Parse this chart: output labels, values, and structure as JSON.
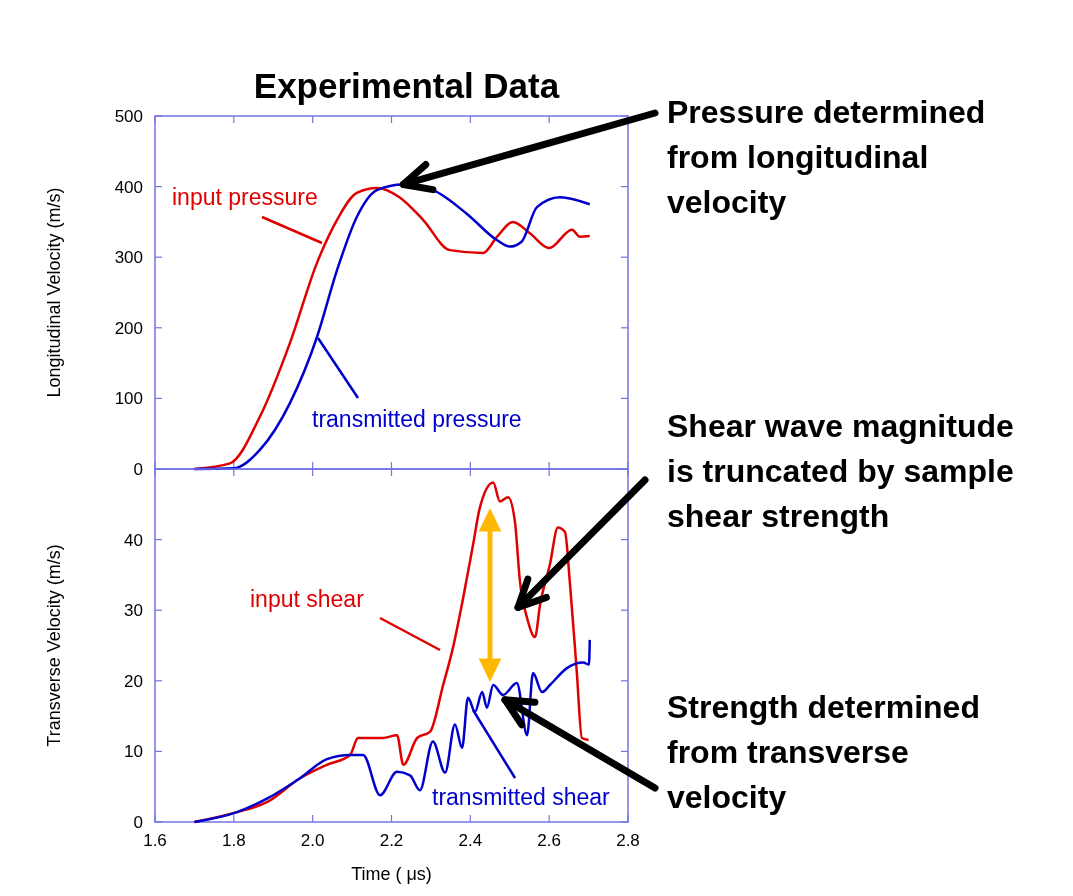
{
  "chart_data": [
    {
      "type": "line",
      "title": "Experimental Data",
      "ylabel": "Longitudinal Velocity (m/s)",
      "xlim": [
        1.6,
        2.8
      ],
      "xticks": [
        1.6,
        1.8,
        2.0,
        2.2,
        2.4,
        2.6,
        2.8
      ],
      "ylim": [
        0,
        500
      ],
      "yticks": [
        0,
        100,
        200,
        300,
        400,
        500
      ],
      "tick_labels": "y",
      "legend": false,
      "grid": false,
      "series": [
        {
          "name": "input pressure",
          "color": "#e00000",
          "x": [
            1.7,
            1.79,
            1.866,
            1.942,
            2.011,
            2.062,
            2.112,
            2.163,
            2.22,
            2.28,
            2.348,
            2.432,
            2.468,
            2.508,
            2.551,
            2.6,
            2.658,
            2.678,
            2.703
          ],
          "values": [
            0,
            8,
            74,
            178,
            292,
            353,
            391,
            398,
            385,
            353,
            310,
            306,
            329,
            350,
            334,
            313,
            339,
            329,
            330
          ]
        },
        {
          "name": "transmitted pressure",
          "color": "#0000cc",
          "x": [
            1.7,
            1.8,
            1.866,
            1.942,
            2.011,
            2.062,
            2.112,
            2.163,
            2.229,
            2.305,
            2.39,
            2.468,
            2.5,
            2.53,
            2.569,
            2.627,
            2.703
          ],
          "values": [
            0,
            1,
            27,
            93,
            187,
            282,
            357,
            395,
            403,
            395,
            362,
            324,
            315,
            322,
            371,
            385,
            375
          ]
        }
      ],
      "annotations": [
        {
          "text": "Pressure determined from longitudinal velocity",
          "x": 2.23,
          "y": 403
        }
      ]
    },
    {
      "type": "line",
      "xlabel": "Time ( μs)",
      "ylabel": "Transverse Velocity (m/s)",
      "xlim": [
        1.6,
        2.8
      ],
      "xticks": [
        1.6,
        1.8,
        {
          "value": 2,
          "label": "2.0"
        },
        2.2,
        2.4,
        2.6,
        2.8
      ],
      "ylim": [
        0,
        50
      ],
      "yticks": [
        0,
        10,
        20,
        30,
        40
      ],
      "legend": false,
      "grid": false,
      "series": [
        {
          "name": "input shear",
          "color": "#e00000",
          "x": [
            1.7,
            1.808,
            1.884,
            1.968,
            2.036,
            2.095,
            2.115,
            2.178,
            2.214,
            2.23,
            2.265,
            2.298,
            2.331,
            2.356,
            2.382,
            2.407,
            2.424,
            2.458,
            2.475,
            2.496,
            2.513,
            2.526,
            2.544,
            2.564,
            2.577,
            2.602,
            2.622,
            2.64,
            2.653,
            2.67,
            2.683,
            2.7
          ],
          "values": [
            0,
            1.4,
            2.8,
            6.2,
            8.1,
            9.5,
            11.9,
            11.9,
            12.3,
            8.1,
            11.9,
            12.8,
            19.4,
            24.7,
            31.8,
            39.3,
            44.5,
            48.1,
            45.4,
            46,
            42.6,
            34,
            28.9,
            26.2,
            30.8,
            36.5,
            41.7,
            41.1,
            33.6,
            21.3,
            11.9,
            11.6
          ]
        },
        {
          "name": "transmitted shear",
          "color": "#0000cc",
          "x": [
            1.7,
            1.808,
            1.884,
            1.968,
            2.036,
            2.095,
            2.128,
            2.171,
            2.214,
            2.247,
            2.272,
            2.305,
            2.336,
            2.361,
            2.379,
            2.394,
            2.412,
            2.43,
            2.442,
            2.458,
            2.483,
            2.518,
            2.544,
            2.559,
            2.582,
            2.602,
            2.645,
            2.686,
            2.701,
            2.703
          ],
          "values": [
            0,
            1.4,
            3.3,
            6.2,
            8.9,
            9.5,
            9.5,
            3.8,
            7.1,
            6.6,
            4.5,
            11.4,
            7,
            13.8,
            10.5,
            17.6,
            15.6,
            18.4,
            16.2,
            19.4,
            18,
            19.7,
            12.3,
            21.1,
            18.4,
            19.4,
            21.8,
            22.6,
            22.3,
            25.8
          ]
        }
      ],
      "annotations": [
        {
          "text": "Shear wave magnitude is truncated by sample shear strength",
          "x": 2.521,
          "y": 30.4
        },
        {
          "text": "Strength determined from transverse velocity",
          "x": 2.488,
          "y": 17.3
        }
      ]
    }
  ]
}
